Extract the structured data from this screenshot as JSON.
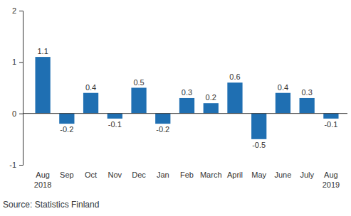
{
  "chart_data": {
    "type": "bar",
    "categories": [
      "Aug 2018",
      "Sep",
      "Oct",
      "Nov",
      "Dec",
      "Jan",
      "Feb",
      "March",
      "April",
      "May",
      "June",
      "July",
      "Aug 2019"
    ],
    "values": [
      1.1,
      -0.2,
      0.4,
      -0.1,
      0.5,
      -0.2,
      0.3,
      0.2,
      0.6,
      -0.5,
      0.4,
      0.3,
      -0.1
    ],
    "color": "#1f6fb2",
    "ylim": [
      -1,
      2
    ],
    "yticks": [
      -1,
      0,
      1,
      2
    ],
    "grid": false,
    "data_labels": true,
    "source": "Source: Statistics Finland"
  }
}
